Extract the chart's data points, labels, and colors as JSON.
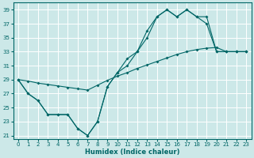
{
  "xlabel": "Humidex (Indice chaleur)",
  "bg_color": "#cce8e8",
  "grid_color": "#ffffff",
  "line_color": "#006666",
  "ylim": [
    20.5,
    40
  ],
  "xlim": [
    -0.5,
    23.5
  ],
  "yticks": [
    21,
    23,
    25,
    27,
    29,
    31,
    33,
    35,
    37,
    39
  ],
  "xticks": [
    0,
    1,
    2,
    3,
    4,
    5,
    6,
    7,
    8,
    9,
    10,
    11,
    12,
    13,
    14,
    15,
    16,
    17,
    18,
    19,
    20,
    21,
    22,
    23
  ],
  "line1_x": [
    0,
    1,
    2,
    3,
    4,
    5,
    6,
    7,
    8,
    9,
    10,
    11,
    12,
    13,
    14,
    15,
    16,
    17,
    18,
    19,
    20,
    21,
    22,
    23
  ],
  "line1_y": [
    29,
    27,
    26,
    24,
    24,
    24,
    22,
    21,
    23,
    28,
    30,
    32,
    33,
    36,
    38,
    39,
    38,
    39,
    38,
    37,
    33,
    33,
    33,
    33
  ],
  "line2_x": [
    0,
    1,
    2,
    3,
    4,
    5,
    6,
    7,
    8,
    9,
    10,
    11,
    12,
    13,
    14,
    15,
    16,
    17,
    18,
    19,
    20,
    21,
    22,
    23
  ],
  "line2_y": [
    29,
    27,
    26,
    24,
    24,
    24,
    22,
    21,
    23,
    28,
    30,
    31,
    33,
    35,
    38,
    39,
    38,
    39,
    38,
    38,
    33,
    33,
    33,
    33
  ],
  "line3_x": [
    0,
    1,
    2,
    3,
    4,
    5,
    6,
    7,
    8,
    9,
    10,
    11,
    12,
    13,
    14,
    15,
    16,
    17,
    18,
    19,
    20,
    21,
    22,
    23
  ],
  "line3_y": [
    29,
    28.8,
    28.5,
    28.3,
    28.1,
    27.9,
    27.7,
    27.5,
    28.2,
    28.9,
    29.5,
    30.0,
    30.6,
    31.1,
    31.6,
    32.1,
    32.6,
    33.0,
    33.3,
    33.5,
    33.6,
    33.0,
    33.0,
    33.0
  ]
}
